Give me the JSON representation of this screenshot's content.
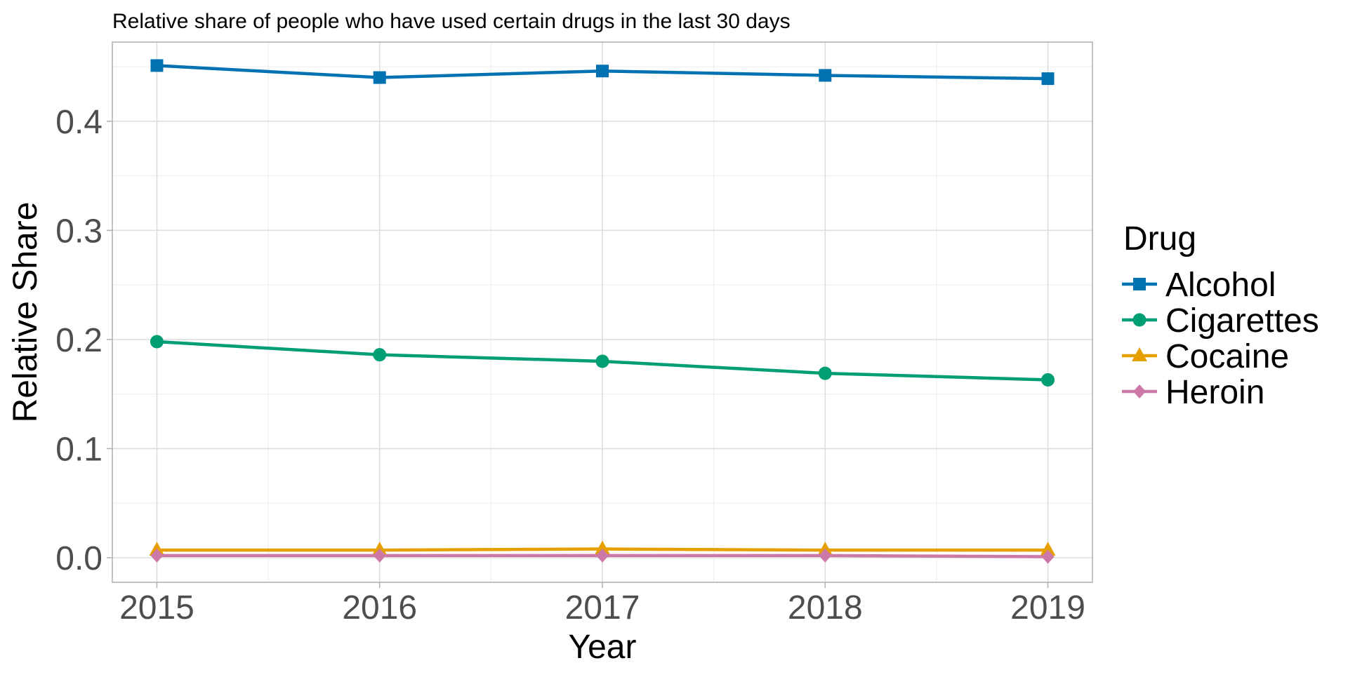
{
  "chart_data": {
    "type": "line",
    "title": "Relative share of people who have used certain drugs in the last 30 days",
    "xlabel": "Year",
    "ylabel": "Relative Share",
    "x": [
      2015,
      2016,
      2017,
      2018,
      2019
    ],
    "x_tick_labels": [
      "2015",
      "2016",
      "2017",
      "2018",
      "2019"
    ],
    "xlim": [
      2014.8,
      2019.2
    ],
    "y_ticks": [
      0.0,
      0.1,
      0.2,
      0.3,
      0.4
    ],
    "y_tick_labels": [
      "0.0",
      "0.1",
      "0.2",
      "0.3",
      "0.4"
    ],
    "ylim": [
      -0.0225,
      0.4725
    ],
    "grid": true,
    "legend": {
      "title": "Drug",
      "position": "right"
    },
    "series": [
      {
        "name": "Alcohol",
        "color": "#0072B2",
        "marker": "square",
        "values": [
          0.451,
          0.44,
          0.446,
          0.442,
          0.439
        ]
      },
      {
        "name": "Cigarettes",
        "color": "#009E73",
        "marker": "circle",
        "values": [
          0.198,
          0.186,
          0.18,
          0.169,
          0.163
        ]
      },
      {
        "name": "Cocaine",
        "color": "#E69F00",
        "marker": "triangle",
        "values": [
          0.007,
          0.007,
          0.008,
          0.007,
          0.007
        ]
      },
      {
        "name": "Heroin",
        "color": "#CC79A7",
        "marker": "diamond",
        "values": [
          0.002,
          0.002,
          0.002,
          0.002,
          0.001
        ]
      }
    ]
  }
}
